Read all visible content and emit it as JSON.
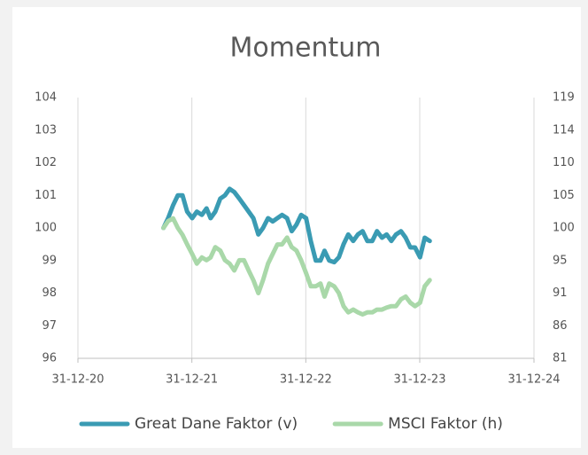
{
  "chart_data": {
    "type": "line",
    "title": "Momentum",
    "x": [
      "2021-10-01",
      "2021-10-16",
      "2021-11-01",
      "2021-11-16",
      "2021-12-01",
      "2021-12-16",
      "2022-01-01",
      "2022-01-16",
      "2022-02-01",
      "2022-02-16",
      "2022-03-01",
      "2022-03-16",
      "2022-04-01",
      "2022-04-16",
      "2022-05-01",
      "2022-05-16",
      "2022-06-01",
      "2022-06-16",
      "2022-07-01",
      "2022-07-16",
      "2022-08-01",
      "2022-08-16",
      "2022-09-01",
      "2022-09-16",
      "2022-10-01",
      "2022-10-16",
      "2022-11-01",
      "2022-11-16",
      "2022-12-01",
      "2022-12-16",
      "2023-01-01",
      "2023-01-16",
      "2023-02-01",
      "2023-02-16",
      "2023-03-01",
      "2023-03-16",
      "2023-04-01",
      "2023-04-16",
      "2023-05-01",
      "2023-05-16",
      "2023-06-01",
      "2023-06-16",
      "2023-07-01",
      "2023-07-16",
      "2023-08-01",
      "2023-08-16",
      "2023-09-01",
      "2023-09-16",
      "2023-10-01",
      "2023-10-16",
      "2023-11-01",
      "2023-11-16",
      "2023-12-01",
      "2023-12-16",
      "2024-01-01",
      "2024-01-16",
      "2024-02-01"
    ],
    "series": [
      {
        "name": "Great Dane Faktor (v)",
        "color": "#3a9bb3",
        "axis": "y",
        "values": [
          100.0,
          100.3,
          100.7,
          101.0,
          101.0,
          100.5,
          100.3,
          100.5,
          100.4,
          100.6,
          100.3,
          100.5,
          100.9,
          101.0,
          101.2,
          101.1,
          100.9,
          100.7,
          100.5,
          100.3,
          99.8,
          100.0,
          100.3,
          100.2,
          100.3,
          100.4,
          100.3,
          99.9,
          100.1,
          100.4,
          100.3,
          99.6,
          99.0,
          99.0,
          99.3,
          99.0,
          98.95,
          99.1,
          99.5,
          99.8,
          99.6,
          99.8,
          99.9,
          99.6,
          99.6,
          99.9,
          99.7,
          99.8,
          99.6,
          99.8,
          99.9,
          99.7,
          99.4,
          99.4,
          99.1,
          99.7,
          99.6
        ]
      },
      {
        "name": "MSCI Faktor (h)",
        "color": "#a9d8a9",
        "axis": "y2",
        "values": [
          100,
          101,
          101.4,
          100,
          99,
          97.6,
          96.2,
          94.8,
          95.7,
          95.3,
          95.7,
          97.2,
          96.7,
          95.3,
          94.8,
          93.8,
          95.3,
          95.3,
          93.8,
          92.4,
          90.5,
          92.4,
          94.8,
          96.2,
          97.6,
          97.6,
          98.6,
          97.2,
          96.7,
          95.3,
          93.4,
          91.5,
          91.5,
          91.9,
          90.0,
          91.9,
          91.5,
          90.5,
          88.6,
          87.7,
          88.1,
          87.7,
          87.4,
          87.7,
          87.7,
          88.1,
          88.1,
          88.4,
          88.6,
          88.6,
          89.6,
          90.0,
          89.1,
          88.6,
          89.1,
          91.5,
          92.4
        ]
      }
    ],
    "xlim": [
      "2020-12-31",
      "2024-12-31"
    ],
    "xticks": [
      {
        "value": "2020-12-31",
        "label": "31-12-20"
      },
      {
        "value": "2021-12-31",
        "label": "31-12-21"
      },
      {
        "value": "2022-12-31",
        "label": "31-12-22"
      },
      {
        "value": "2023-12-31",
        "label": "31-12-23"
      },
      {
        "value": "2024-12-31",
        "label": "31-12-24"
      }
    ],
    "ylim": [
      96,
      104
    ],
    "yticks": [
      96,
      97,
      98,
      99,
      100,
      101,
      102,
      103,
      104
    ],
    "y2lim": [
      81,
      119
    ],
    "y2ticks": [
      81,
      {
        "value": 85.75,
        "label": "86"
      },
      {
        "value": 90.5,
        "label": "91"
      },
      {
        "value": 95.25,
        "label": "95"
      },
      100,
      {
        "value": 104.75,
        "label": "105"
      },
      {
        "value": 109.5,
        "label": "110"
      },
      {
        "value": 114.25,
        "label": "114"
      },
      119
    ],
    "grid": "x",
    "legend": "bottom"
  }
}
